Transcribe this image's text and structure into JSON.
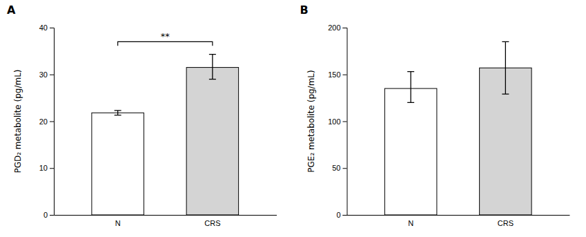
{
  "chart_data": [
    {
      "type": "bar",
      "title": "A",
      "categories": [
        "N",
        "CRS"
      ],
      "values": [
        21.8,
        31.5
      ],
      "errors_upper": [
        0.5,
        2.8
      ],
      "errors_lower": [
        0.5,
        2.5
      ],
      "colors": [
        "white",
        "#d4d4d4"
      ],
      "y_label": "PGD₂ metabolite (pg/mL)",
      "ylim": [
        0,
        40
      ],
      "yticks": [
        0,
        10,
        20,
        30,
        40
      ],
      "grid": false,
      "annotations": [
        {
          "text": "**",
          "y": 37.0,
          "from": "N",
          "to": "CRS"
        }
      ]
    },
    {
      "type": "bar",
      "title": "B",
      "categories": [
        "N",
        "CRS"
      ],
      "values": [
        135,
        157
      ],
      "errors_upper": [
        18,
        28
      ],
      "errors_lower": [
        15,
        28
      ],
      "colors": [
        "white",
        "#d4d4d4"
      ],
      "y_label": "PGE₂ metabolite (pg/mL)",
      "ylim": [
        0,
        200
      ],
      "yticks": [
        0,
        50,
        100,
        150,
        200
      ],
      "grid": false
    }
  ]
}
